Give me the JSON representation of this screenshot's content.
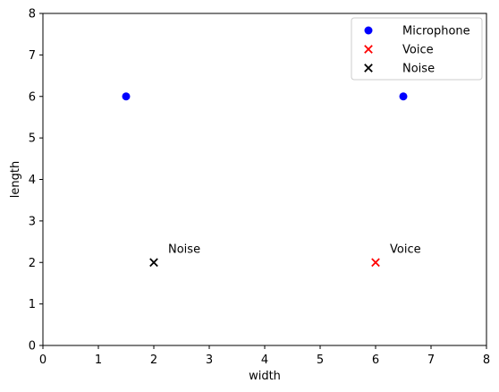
{
  "chart_data": {
    "type": "scatter",
    "title": "",
    "xlabel": "width",
    "ylabel": "length",
    "xlim": [
      0,
      8
    ],
    "ylim": [
      0,
      8
    ],
    "xticks": [
      0,
      1,
      2,
      3,
      4,
      5,
      6,
      7,
      8
    ],
    "yticks": [
      0,
      1,
      2,
      3,
      4,
      5,
      6,
      7,
      8
    ],
    "grid": false,
    "legend_position": "top-right",
    "series": [
      {
        "name": "Microphone",
        "marker": "circle",
        "color": "#0000ff",
        "points": [
          {
            "x": 1.5,
            "y": 6
          },
          {
            "x": 6.5,
            "y": 6
          }
        ]
      },
      {
        "name": "Voice",
        "marker": "x",
        "color": "#ff0000",
        "points": [
          {
            "x": 6,
            "y": 2
          }
        ]
      },
      {
        "name": "Noise",
        "marker": "x",
        "color": "#000000",
        "points": [
          {
            "x": 2,
            "y": 2
          }
        ]
      }
    ],
    "annotations": [
      {
        "text": "Voice",
        "x": 6,
        "y": 2
      },
      {
        "text": "Noise",
        "x": 2,
        "y": 2
      }
    ]
  }
}
